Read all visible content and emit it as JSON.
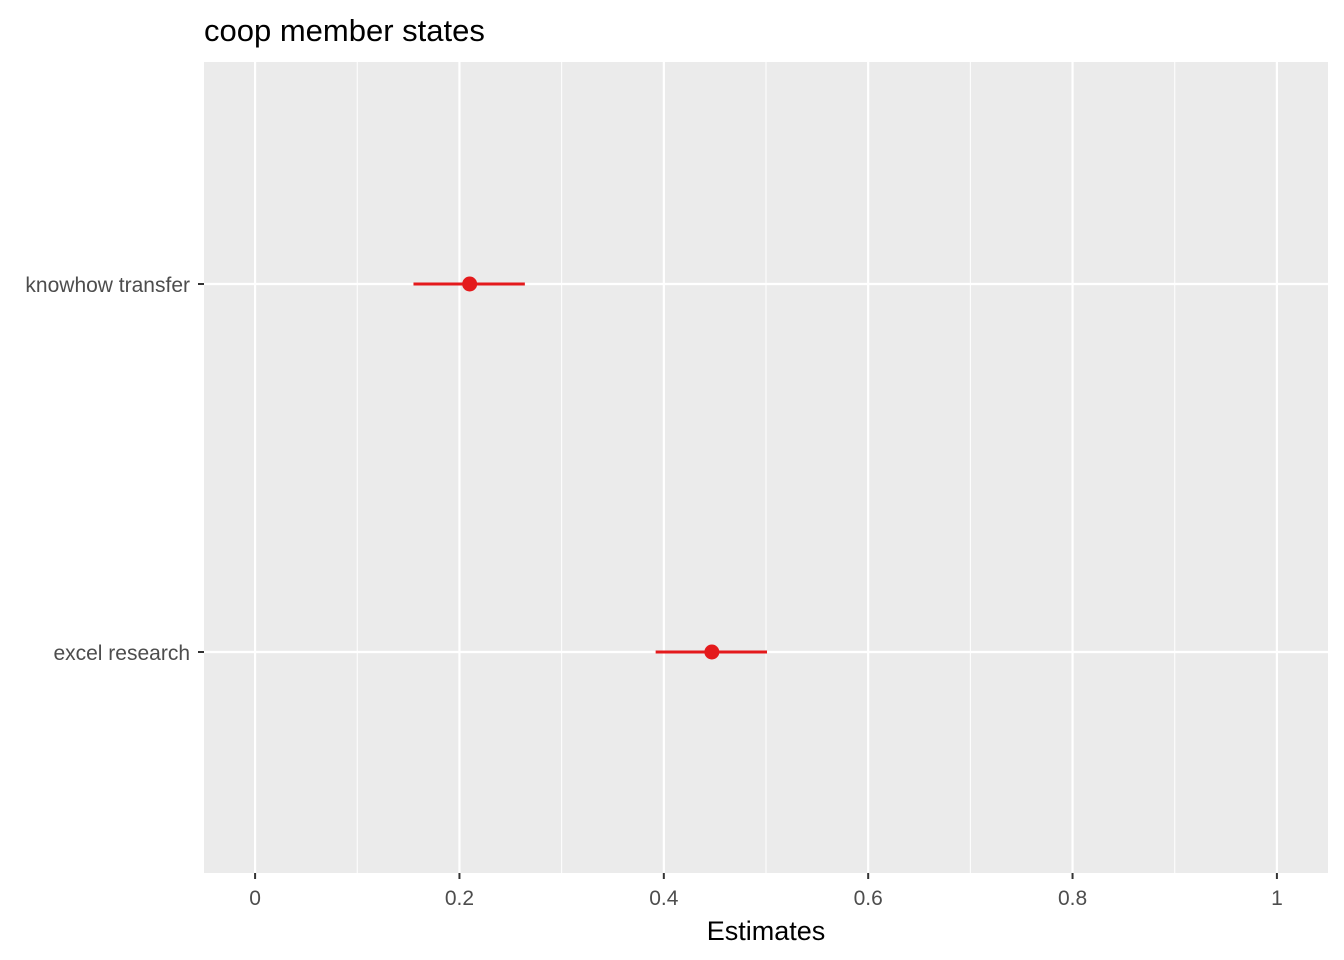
{
  "chart_data": {
    "type": "scatter",
    "title": "coop member states",
    "xlabel": "Estimates",
    "ylabel": "",
    "xlim": [
      -0.05,
      1.05
    ],
    "x_ticks": [
      0,
      0.2,
      0.4,
      0.6,
      0.8,
      1
    ],
    "x_tick_labels": [
      "0",
      "0.2",
      "0.4",
      "0.6",
      "0.8",
      "1"
    ],
    "categories": [
      "knowhow transfer",
      "excel research"
    ],
    "estimates": [
      0.21,
      0.447
    ],
    "ci_low": [
      0.155,
      0.392
    ],
    "ci_high": [
      0.264,
      0.501
    ],
    "grid": true,
    "legend": "none",
    "colors": {
      "panel_background": "#ebebeb",
      "grid_major": "#ffffff",
      "point": "#e41a1c",
      "tick_text": "#4d4d4d",
      "title_text": "#000000"
    }
  }
}
